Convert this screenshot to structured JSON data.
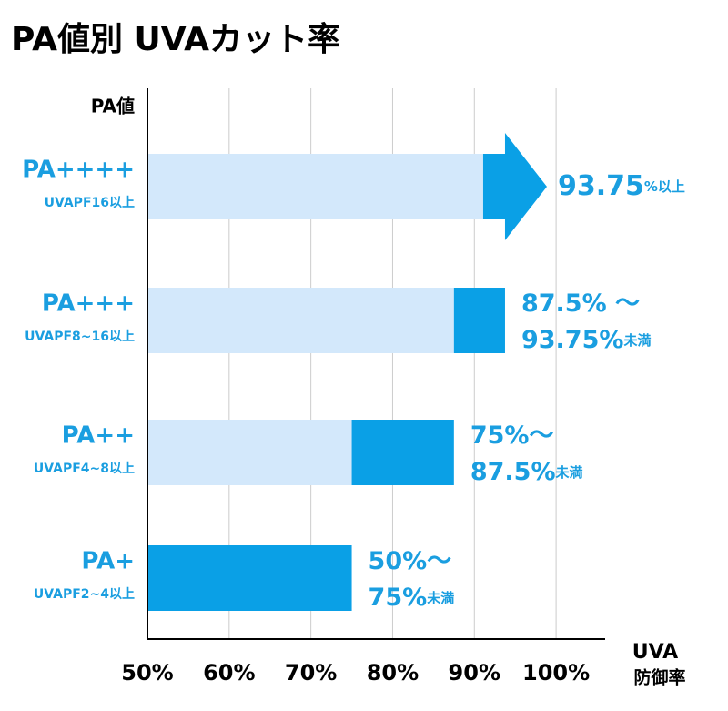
{
  "chart_data": {
    "type": "range-bar",
    "title": "PA値別 UVAカット率",
    "ylabel": "PA値",
    "xlabel": [
      "UVA",
      "防御率"
    ],
    "categories": [
      "PA++++",
      "PA+++",
      "PA++",
      "PA+"
    ],
    "sublabels": [
      "UVAPF16以上",
      "UVAPF8~16以上",
      "UVAPF4~8以上",
      "UVAPF2~4以上"
    ],
    "low": [
      93.75,
      87.5,
      75,
      50
    ],
    "high": [
      null,
      93.75,
      87.5,
      75
    ],
    "low_labels": [
      "93.75",
      "87.5% ～",
      "75%～",
      "50%～"
    ],
    "low_notes": [
      "%以上",
      null,
      null,
      null
    ],
    "high_labels": [
      null,
      "93.75%",
      "87.5%",
      "75%"
    ],
    "high_notes": [
      null,
      "未満",
      "未満",
      "未満"
    ],
    "base_color": "#d3e8fb",
    "color": "#0aa0e6",
    "label_color": "#1a9ee0",
    "xlim": [
      50,
      106
    ],
    "xticks": [
      {
        "value": 50,
        "label": "50%"
      },
      {
        "value": 60,
        "label": "60%"
      },
      {
        "value": 70,
        "label": "70%"
      },
      {
        "value": 80,
        "label": "80%"
      },
      {
        "value": 90,
        "label": "90%"
      },
      {
        "value": 100,
        "label": "100%"
      }
    ],
    "grid": true
  }
}
